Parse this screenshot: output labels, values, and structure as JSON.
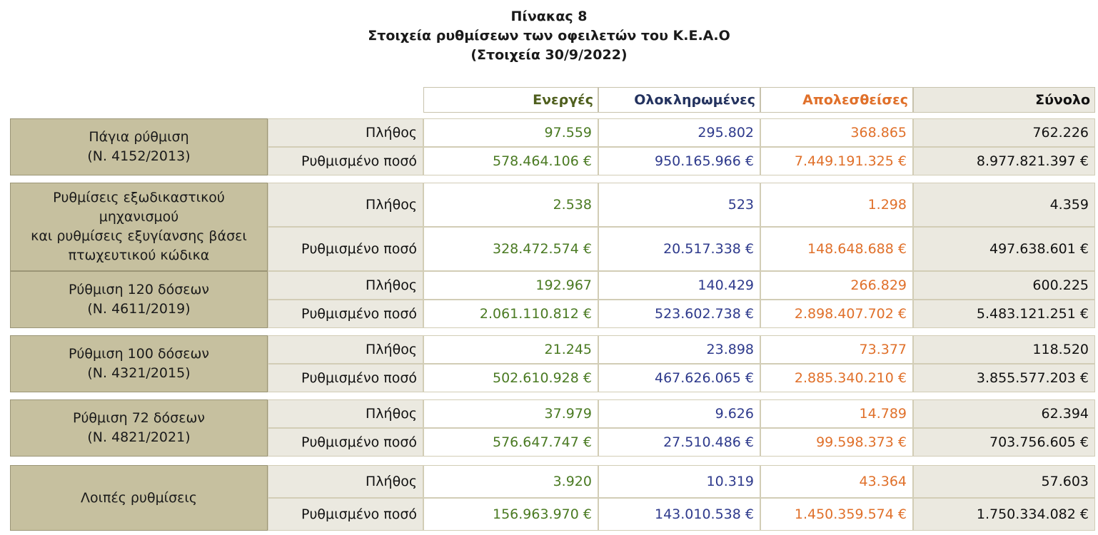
{
  "title": {
    "line1": "Πίνακας 8",
    "line2": "Στοιχεία ρυθμίσεων των οφειλετών του Κ.Ε.Α.Ο",
    "line3": "(Στοιχεία 30/9/2022)"
  },
  "columns": {
    "active": "Ενεργές",
    "completed": "Ολοκληρωμένες",
    "lost": "Απολεσθείσες",
    "total": "Σύνολο"
  },
  "colors": {
    "active": "#4a7a22",
    "completed": "#2e3a8c",
    "lost": "#e0702a",
    "label_bg": "#c6c09f",
    "metric_bg": "#ebe9e0"
  },
  "groups": [
    {
      "label_lines": [
        "Πάγια ρύθμιση",
        "(Ν. 4152/2013)"
      ],
      "rows": [
        {
          "metric": "Πλήθος",
          "active": "97.559",
          "completed": "295.802",
          "lost": "368.865",
          "total": "762.226"
        },
        {
          "metric": "Ρυθμισμένο ποσό",
          "active": "578.464.106 €",
          "completed": "950.165.966 €",
          "lost": "7.449.191.325 €",
          "total": "8.977.821.397 €"
        }
      ]
    },
    {
      "label_lines": [
        "Ρυθμίσεις εξωδικαστικού",
        "μηχανισμού",
        "και ρυθμίσεις εξυγίανσης βάσει",
        "πτωχευτικού κώδικα"
      ],
      "rows": [
        {
          "metric": "Πλήθος",
          "active": "2.538",
          "completed": "523",
          "lost": "1.298",
          "total": "4.359"
        },
        {
          "metric": "Ρυθμισμένο ποσό",
          "active": "328.472.574 €",
          "completed": "20.517.338 €",
          "lost": "148.648.688 €",
          "total": "497.638.601 €"
        }
      ]
    },
    {
      "label_lines": [
        "Ρύθμιση 120 δόσεων",
        "(Ν. 4611/2019)"
      ],
      "rows": [
        {
          "metric": "Πλήθος",
          "active": "192.967",
          "completed": "140.429",
          "lost": "266.829",
          "total": "600.225"
        },
        {
          "metric": "Ρυθμισμένο ποσό",
          "active": "2.061.110.812 €",
          "completed": "523.602.738 €",
          "lost": "2.898.407.702 €",
          "total": "5.483.121.251 €"
        }
      ]
    },
    {
      "label_lines": [
        "Ρύθμιση 100 δόσεων",
        "(Ν. 4321/2015)"
      ],
      "rows": [
        {
          "metric": "Πλήθος",
          "active": "21.245",
          "completed": "23.898",
          "lost": "73.377",
          "total": "118.520"
        },
        {
          "metric": "Ρυθμισμένο ποσό",
          "active": "502.610.928 €",
          "completed": "467.626.065 €",
          "lost": "2.885.340.210 €",
          "total": "3.855.577.203 €"
        }
      ]
    },
    {
      "label_lines": [
        "Ρύθμιση 72 δόσεων",
        "(Ν. 4821/2021)"
      ],
      "rows": [
        {
          "metric": "Πλήθος",
          "active": "37.979",
          "completed": "9.626",
          "lost": "14.789",
          "total": "62.394"
        },
        {
          "metric": "Ρυθμισμένο ποσό",
          "active": "576.647.747 €",
          "completed": "27.510.486 €",
          "lost": "99.598.373 €",
          "total": "703.756.605 €"
        }
      ]
    },
    {
      "label_lines": [
        "Λοιπές ρυθμίσεις"
      ],
      "rows": [
        {
          "metric": "Πλήθος",
          "active": "3.920",
          "completed": "10.319",
          "lost": "43.364",
          "total": "57.603"
        },
        {
          "metric": "Ρυθμισμένο ποσό",
          "active": "156.963.970 €",
          "completed": "143.010.538 €",
          "lost": "1.450.359.574 €",
          "total": "1.750.334.082 €"
        }
      ]
    }
  ]
}
